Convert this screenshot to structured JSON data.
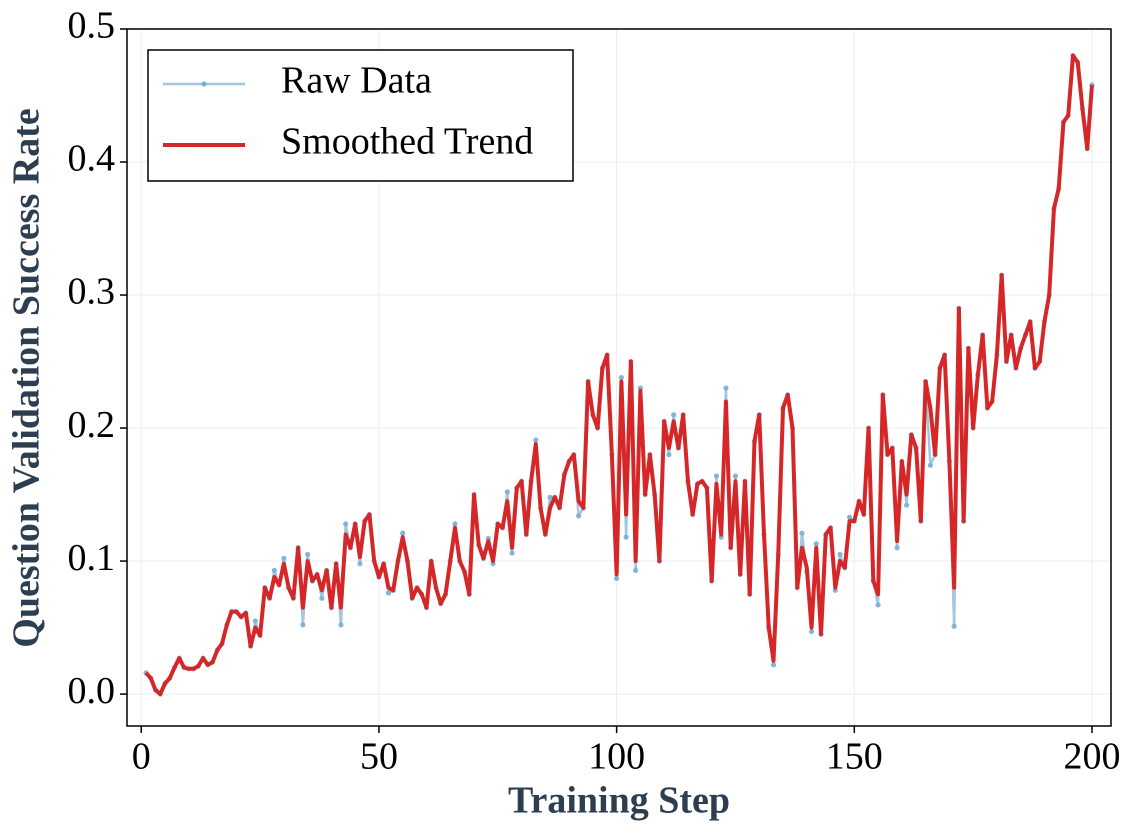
{
  "chart_data": {
    "type": "line",
    "xlabel": "Training Step",
    "ylabel": "Question Validation Success Rate",
    "x": [
      1,
      2,
      3,
      4,
      5,
      6,
      7,
      8,
      9,
      10,
      11,
      12,
      13,
      14,
      15,
      16,
      17,
      18,
      19,
      20,
      21,
      22,
      23,
      24,
      25,
      26,
      27,
      28,
      29,
      30,
      31,
      32,
      33,
      34,
      35,
      36,
      37,
      38,
      39,
      40,
      41,
      42,
      43,
      44,
      45,
      46,
      47,
      48,
      49,
      50,
      51,
      52,
      53,
      54,
      55,
      56,
      57,
      58,
      59,
      60,
      61,
      62,
      63,
      64,
      65,
      66,
      67,
      68,
      69,
      70,
      71,
      72,
      73,
      74,
      75,
      76,
      77,
      78,
      79,
      80,
      81,
      82,
      83,
      84,
      85,
      86,
      87,
      88,
      89,
      90,
      91,
      92,
      93,
      94,
      95,
      96,
      97,
      98,
      99,
      100,
      101,
      102,
      103,
      104,
      105,
      106,
      107,
      108,
      109,
      110,
      111,
      112,
      113,
      114,
      115,
      116,
      117,
      118,
      119,
      120,
      121,
      122,
      123,
      124,
      125,
      126,
      127,
      128,
      129,
      130,
      131,
      132,
      133,
      134,
      135,
      136,
      137,
      138,
      139,
      140,
      141,
      142,
      143,
      144,
      145,
      146,
      147,
      148,
      149,
      150,
      151,
      152,
      153,
      154,
      155,
      156,
      157,
      158,
      159,
      160,
      161,
      162,
      163,
      164,
      165,
      166,
      167,
      168,
      169,
      170,
      171,
      172,
      173,
      174,
      175,
      176,
      177,
      178,
      179,
      180,
      181,
      182,
      183,
      184,
      185,
      186,
      187,
      188,
      189,
      190,
      191,
      192,
      193,
      194,
      195,
      196,
      197,
      198,
      199,
      200
    ],
    "series": [
      {
        "name": "Raw Data",
        "color": "#7bafd4",
        "values": [
          0.016,
          0.012,
          0.003,
          0.0,
          0.008,
          0.012,
          0.02,
          0.027,
          0.02,
          0.019,
          0.019,
          0.021,
          0.027,
          0.022,
          0.024,
          0.033,
          0.038,
          0.052,
          0.062,
          0.062,
          0.058,
          0.061,
          0.036,
          0.055,
          0.044,
          0.08,
          0.072,
          0.093,
          0.082,
          0.102,
          0.08,
          0.072,
          0.11,
          0.052,
          0.105,
          0.085,
          0.09,
          0.072,
          0.093,
          0.065,
          0.098,
          0.052,
          0.128,
          0.11,
          0.128,
          0.098,
          0.13,
          0.135,
          0.1,
          0.088,
          0.098,
          0.076,
          0.078,
          0.1,
          0.121,
          0.1,
          0.072,
          0.08,
          0.075,
          0.065,
          0.1,
          0.08,
          0.068,
          0.075,
          0.1,
          0.128,
          0.1,
          0.092,
          0.075,
          0.15,
          0.112,
          0.102,
          0.117,
          0.098,
          0.128,
          0.125,
          0.152,
          0.106,
          0.155,
          0.16,
          0.12,
          0.16,
          0.191,
          0.14,
          0.12,
          0.148,
          0.148,
          0.14,
          0.165,
          0.175,
          0.18,
          0.134,
          0.14,
          0.235,
          0.21,
          0.2,
          0.245,
          0.255,
          0.18,
          0.087,
          0.238,
          0.118,
          0.25,
          0.093,
          0.23,
          0.15,
          0.18,
          0.15,
          0.1,
          0.205,
          0.18,
          0.21,
          0.185,
          0.21,
          0.16,
          0.135,
          0.158,
          0.16,
          0.155,
          0.085,
          0.164,
          0.118,
          0.23,
          0.11,
          0.164,
          0.09,
          0.16,
          0.075,
          0.19,
          0.21,
          0.12,
          0.05,
          0.022,
          0.105,
          0.215,
          0.225,
          0.2,
          0.08,
          0.121,
          0.092,
          0.047,
          0.113,
          0.045,
          0.12,
          0.125,
          0.078,
          0.105,
          0.095,
          0.133,
          0.13,
          0.145,
          0.135,
          0.2,
          0.085,
          0.067,
          0.225,
          0.18,
          0.185,
          0.11,
          0.175,
          0.142,
          0.195,
          0.185,
          0.13,
          0.235,
          0.172,
          0.18,
          0.245,
          0.255,
          0.175,
          0.051,
          0.29,
          0.13,
          0.26,
          0.2,
          0.24,
          0.27,
          0.215,
          0.22,
          0.255,
          0.315,
          0.25,
          0.27,
          0.245,
          0.26,
          0.27,
          0.28,
          0.245,
          0.25,
          0.28,
          0.3,
          0.365,
          0.38,
          0.43,
          0.435,
          0.48,
          0.475,
          0.44,
          0.41,
          0.458
        ]
      },
      {
        "name": "Smoothed Trend",
        "color": "#d62728",
        "values": [
          0.016,
          0.012,
          0.003,
          0.0,
          0.008,
          0.012,
          0.02,
          0.027,
          0.02,
          0.019,
          0.019,
          0.021,
          0.027,
          0.022,
          0.024,
          0.033,
          0.038,
          0.052,
          0.062,
          0.062,
          0.058,
          0.061,
          0.036,
          0.05,
          0.044,
          0.08,
          0.072,
          0.088,
          0.082,
          0.098,
          0.08,
          0.072,
          0.11,
          0.065,
          0.1,
          0.085,
          0.09,
          0.078,
          0.093,
          0.065,
          0.098,
          0.065,
          0.12,
          0.11,
          0.128,
          0.103,
          0.13,
          0.135,
          0.1,
          0.088,
          0.098,
          0.08,
          0.078,
          0.1,
          0.118,
          0.1,
          0.072,
          0.08,
          0.075,
          0.065,
          0.1,
          0.08,
          0.068,
          0.075,
          0.1,
          0.125,
          0.1,
          0.092,
          0.075,
          0.15,
          0.112,
          0.102,
          0.115,
          0.1,
          0.128,
          0.125,
          0.145,
          0.11,
          0.155,
          0.16,
          0.12,
          0.16,
          0.188,
          0.14,
          0.12,
          0.14,
          0.148,
          0.14,
          0.165,
          0.175,
          0.18,
          0.145,
          0.14,
          0.235,
          0.21,
          0.2,
          0.245,
          0.255,
          0.18,
          0.09,
          0.235,
          0.135,
          0.25,
          0.1,
          0.228,
          0.15,
          0.18,
          0.15,
          0.1,
          0.205,
          0.185,
          0.205,
          0.185,
          0.21,
          0.16,
          0.135,
          0.158,
          0.16,
          0.155,
          0.085,
          0.158,
          0.12,
          0.22,
          0.11,
          0.16,
          0.09,
          0.16,
          0.075,
          0.19,
          0.21,
          0.12,
          0.05,
          0.025,
          0.105,
          0.215,
          0.225,
          0.2,
          0.08,
          0.11,
          0.095,
          0.05,
          0.11,
          0.045,
          0.12,
          0.125,
          0.08,
          0.1,
          0.095,
          0.13,
          0.13,
          0.145,
          0.135,
          0.2,
          0.085,
          0.075,
          0.225,
          0.18,
          0.185,
          0.115,
          0.175,
          0.15,
          0.195,
          0.185,
          0.13,
          0.235,
          0.215,
          0.18,
          0.245,
          0.255,
          0.175,
          0.08,
          0.29,
          0.13,
          0.26,
          0.2,
          0.24,
          0.27,
          0.215,
          0.22,
          0.255,
          0.315,
          0.25,
          0.27,
          0.245,
          0.26,
          0.27,
          0.28,
          0.245,
          0.25,
          0.28,
          0.3,
          0.365,
          0.38,
          0.43,
          0.435,
          0.48,
          0.475,
          0.44,
          0.41,
          0.458
        ]
      }
    ],
    "xlim": [
      -3,
      204
    ],
    "ylim": [
      -0.024,
      0.5
    ],
    "xticks": [
      0,
      50,
      100,
      150,
      200
    ],
    "yticks": [
      {
        "value": 0,
        "label": "0.0"
      },
      0.1,
      0.2,
      0.3,
      0.4,
      0.5
    ],
    "grid": true,
    "legend": "upper left"
  }
}
